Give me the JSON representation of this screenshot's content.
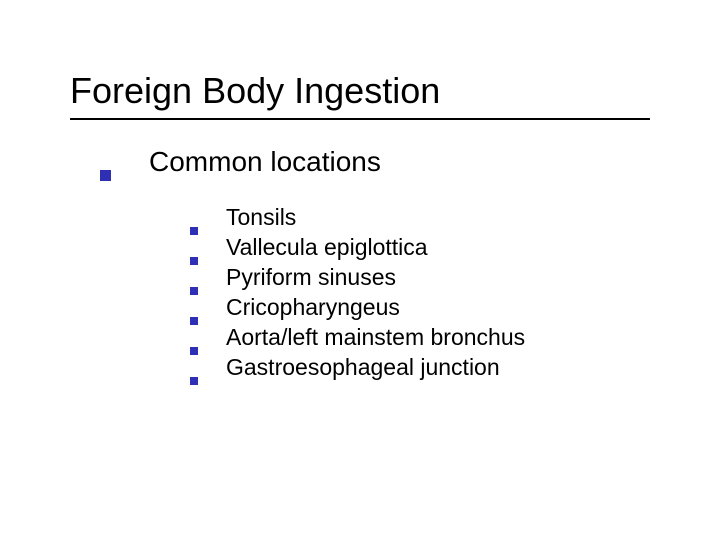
{
  "slide": {
    "title": "Foreign Body Ingestion",
    "title_fontsize": 36,
    "title_color": "#000000",
    "title_underline_color": "#000000",
    "background_color": "#ffffff",
    "bullet_color": "#2f2fb4",
    "level1": {
      "text": "Common locations",
      "fontsize": 28,
      "bullet_size": 11
    },
    "level2": {
      "fontsize": 23,
      "bullet_size": 8,
      "items": [
        "Tonsils",
        "Vallecula epiglottica",
        "Pyriform sinuses",
        "Cricopharyngeus",
        "Aorta/left mainstem bronchus",
        "Gastroesophageal junction"
      ]
    }
  }
}
